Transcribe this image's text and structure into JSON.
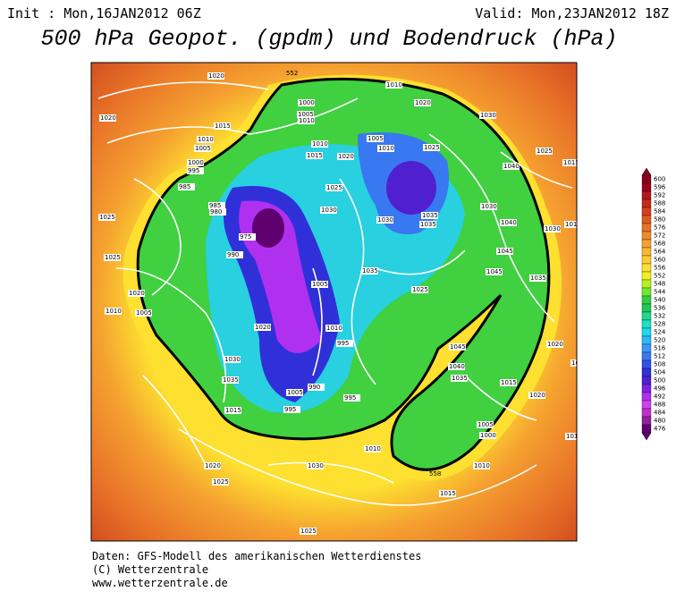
{
  "header": {
    "init": "Init : Mon,16JAN2012 06Z",
    "valid": "Valid: Mon,23JAN2012 18Z",
    "title": "500 hPa Geopot. (gpdm) und Bodendruck (hPa)"
  },
  "map": {
    "contour_labels": [
      "552",
      "558"
    ],
    "isobar_labels": [
      "1020",
      "1010",
      "1000",
      "1005",
      "1010",
      "1020",
      "1030",
      "1015",
      "1005",
      "1010",
      "1025",
      "1015",
      "1020",
      "1010",
      "1020",
      "1010",
      "1005",
      "1000",
      "995",
      "985",
      "1025",
      "1040",
      "1025",
      "1015",
      "1030",
      "1030",
      "1035",
      "1035",
      "985",
      "980",
      "975",
      "990",
      "1025",
      "1030",
      "1040",
      "1045",
      "1010",
      "1030",
      "1025",
      "1020",
      "1010",
      "1005",
      "1035",
      "1025",
      "1045",
      "1035",
      "1020",
      "1010",
      "1005",
      "995",
      "1030",
      "1035",
      "1005",
      "995",
      "990",
      "995",
      "1045",
      "1040",
      "1035",
      "1020",
      "1015",
      "1020",
      "1005",
      "1000",
      "1015",
      "1020",
      "1030",
      "1025",
      "1015",
      "1010",
      "1010",
      "1025",
      "1015",
      "1010"
    ]
  },
  "legend": {
    "values": [
      600,
      596,
      592,
      588,
      584,
      580,
      576,
      572,
      568,
      564,
      560,
      556,
      552,
      548,
      544,
      540,
      536,
      532,
      528,
      524,
      520,
      516,
      512,
      508,
      504,
      500,
      496,
      492,
      488,
      484,
      480,
      476
    ],
    "colors": [
      "#8b0020",
      "#a0001c",
      "#b41818",
      "#c82a1a",
      "#d4401e",
      "#e05a20",
      "#e87228",
      "#f08a28",
      "#f5a030",
      "#f8b830",
      "#fbcc30",
      "#fde030",
      "#f0f020",
      "#b8f020",
      "#70e830",
      "#30d040",
      "#20c858",
      "#20d890",
      "#20e0c8",
      "#20d8f0",
      "#30b8f8",
      "#3898f8",
      "#3878f0",
      "#3050e8",
      "#3030d8",
      "#5020d0",
      "#8020e0",
      "#b030f0",
      "#d040f0",
      "#c030c8",
      "#9020a0",
      "#600070"
    ]
  },
  "footer": [
    "Daten: GFS-Modell des amerikanischen Wetterdienstes",
    "(C) Wetterzentrale",
    "www.wetterzentrale.de"
  ]
}
